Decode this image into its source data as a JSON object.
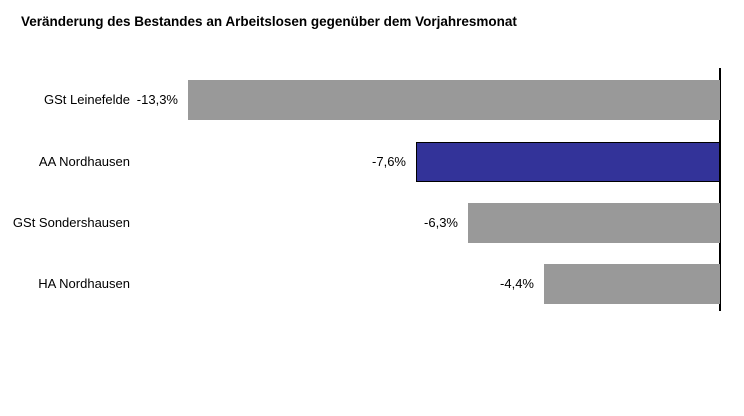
{
  "title": "Veränderung des Bestandes an Arbeitslosen gegenüber dem Vorjahresmonat",
  "chart_data": {
    "type": "bar",
    "orientation": "horizontal",
    "title": "Veränderung des Bestandes an Arbeitslosen gegenüber dem Vorjahresmonat",
    "categories": [
      "GSt Leinefelde",
      "AA Nordhausen",
      "GSt Sondershausen",
      "HA Nordhausen"
    ],
    "values": [
      -13.3,
      -7.6,
      -6.3,
      -4.4
    ],
    "value_labels": [
      "-13,3%",
      "-7,6%",
      "-6,3%",
      "-4,4%"
    ],
    "highlighted_index": 1,
    "xlabel": "",
    "ylabel": "",
    "xlim": [
      -18,
      0
    ],
    "grid": false,
    "legend": false,
    "zero_axis_position": "right",
    "colors": {
      "bar": "#999999",
      "highlight": "#333399",
      "highlight_border": "#000000",
      "axis": "#000000",
      "text": "#000000",
      "background": "#ffffff"
    }
  }
}
